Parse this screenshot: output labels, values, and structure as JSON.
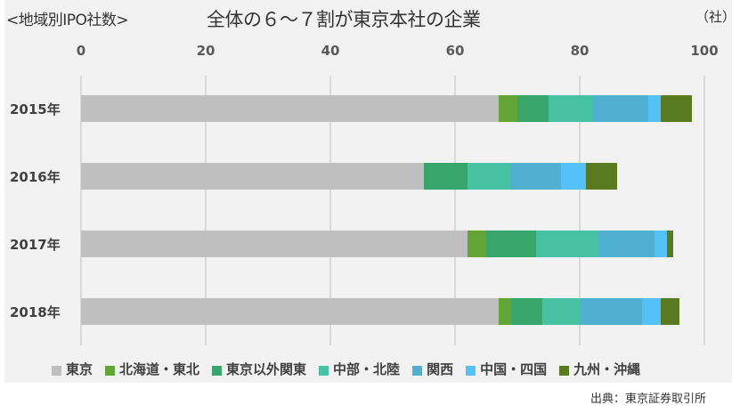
{
  "header": {
    "subtitle": "<地域別IPO社数>",
    "title": "全体の６～７割が東京本社の企業",
    "unit": "（社）"
  },
  "source": "出典：東京証券取引所",
  "colors": {
    "東京": "#bfbfbf",
    "北海道・東北": "#63a537",
    "東京以外関東": "#38a66b",
    "中部・北陸": "#46c1a1",
    "関西": "#4fb0d0",
    "中国・四国": "#54c2f7",
    "九州・沖縄": "#5a7a22"
  },
  "chart_data": {
    "type": "bar",
    "orientation": "horizontal",
    "stacked": true,
    "title": "全体の６～７割が東京本社の企業",
    "subtitle": "<地域別IPO社数>",
    "xlabel": "（社）",
    "ylabel": "",
    "xlim": [
      0,
      100
    ],
    "xticks": [
      0,
      20,
      40,
      60,
      80,
      100
    ],
    "grid": true,
    "legend_position": "bottom",
    "categories": [
      "2015年",
      "2016年",
      "2017年",
      "2018年"
    ],
    "series": [
      {
        "name": "東京",
        "color": "#bfbfbf",
        "values": [
          67,
          55,
          62,
          67
        ]
      },
      {
        "name": "北海道・東北",
        "color": "#63a537",
        "values": [
          3,
          0,
          3,
          2
        ]
      },
      {
        "name": "東京以外関東",
        "color": "#38a66b",
        "values": [
          5,
          7,
          8,
          5
        ]
      },
      {
        "name": "中部・北陸",
        "color": "#46c1a1",
        "values": [
          7,
          7,
          10,
          6
        ]
      },
      {
        "name": "関西",
        "color": "#4fb0d0",
        "values": [
          9,
          8,
          9,
          10
        ]
      },
      {
        "name": "中国・四国",
        "color": "#54c2f7",
        "values": [
          2,
          4,
          2,
          3
        ]
      },
      {
        "name": "九州・沖縄",
        "color": "#5a7a22",
        "values": [
          5,
          5,
          1,
          3
        ]
      }
    ],
    "source": "出典：東京証券取引所"
  }
}
